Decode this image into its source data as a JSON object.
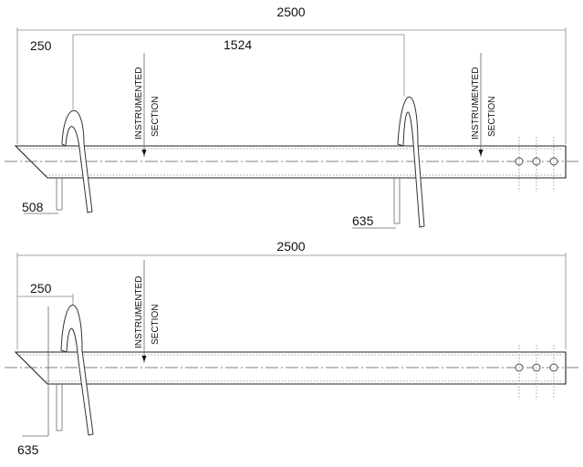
{
  "drawing1": {
    "overall_length": "2500",
    "tip_offset": "250",
    "helix_spacing": "1524",
    "helix1_diameter": "508",
    "helix2_diameter": "635",
    "section_label_1": "INSTRUMENTED",
    "section_label_2": "SECTION"
  },
  "drawing2": {
    "overall_length": "2500",
    "tip_offset": "250",
    "helix_diameter": "635",
    "section_label_1": "INSTRUMENTED",
    "section_label_2": "SECTION"
  }
}
